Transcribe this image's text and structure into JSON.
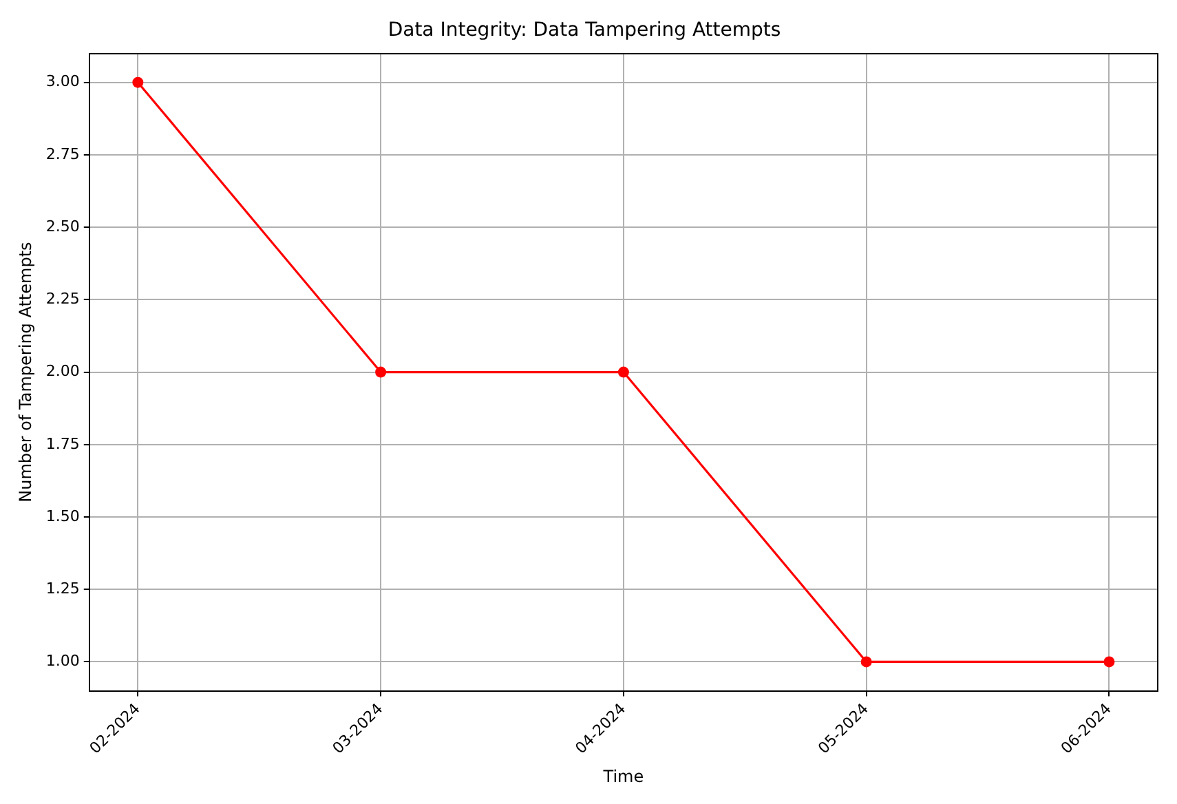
{
  "chart_data": {
    "type": "line",
    "title": "Data Integrity: Data Tampering Attempts",
    "xlabel": "Time",
    "ylabel": "Number of Tampering Attempts",
    "categories": [
      "02-2024",
      "03-2024",
      "04-2024",
      "05-2024",
      "06-2024"
    ],
    "series": [
      {
        "color": "#ff0000",
        "values": [
          3,
          2,
          2,
          1,
          1
        ]
      }
    ],
    "ylim": [
      0.9,
      3.1
    ],
    "yticks": [
      {
        "value": 1,
        "label": "1.00"
      },
      {
        "value": 1.25,
        "label": "1.25"
      },
      {
        "value": 1.5,
        "label": "1.50"
      },
      {
        "value": 1.75,
        "label": "1.75"
      },
      {
        "value": 2,
        "label": "2.00"
      },
      {
        "value": 2.25,
        "label": "2.25"
      },
      {
        "value": 2.5,
        "label": "2.50"
      },
      {
        "value": 2.75,
        "label": "2.75"
      },
      {
        "value": 3,
        "label": "3.00"
      }
    ],
    "grid": true,
    "legend": false,
    "marker": "circle",
    "line_style": "solid"
  }
}
